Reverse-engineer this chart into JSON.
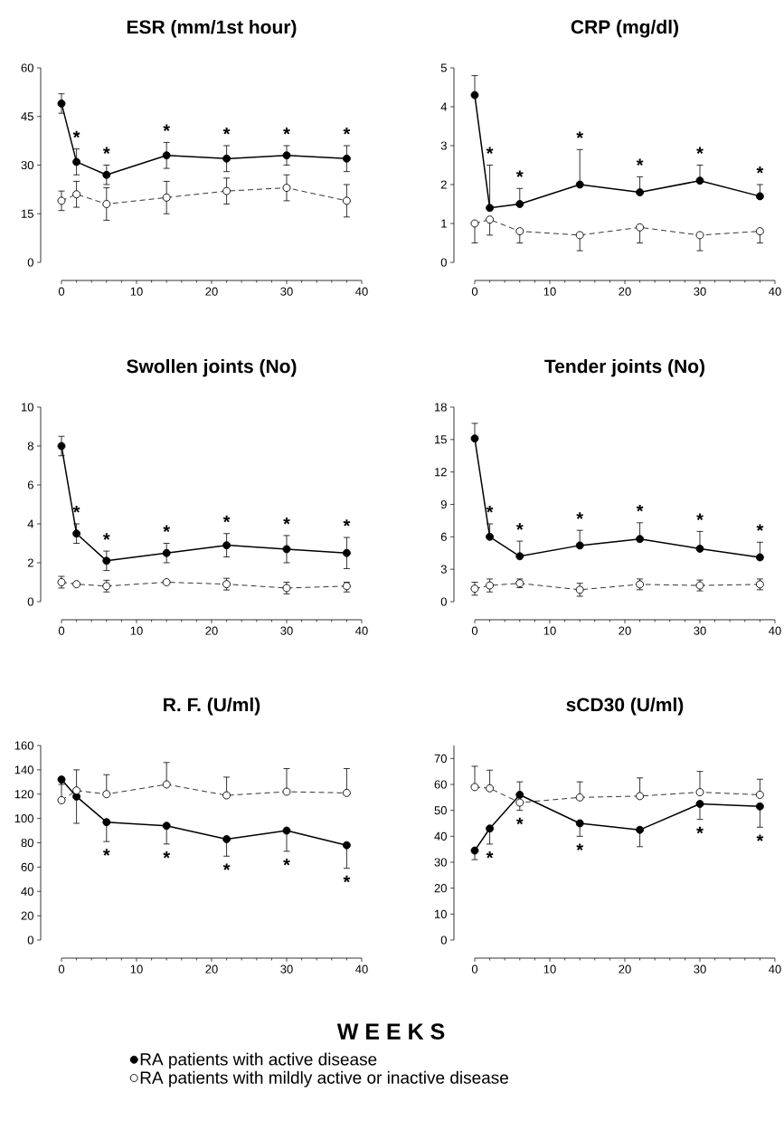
{
  "chart_data": [
    {
      "type": "line",
      "title": "ESR (mm/1st hour)",
      "x": [
        0,
        2,
        6,
        14,
        22,
        30,
        38
      ],
      "xlim": [
        0,
        40
      ],
      "xticks": [
        0,
        10,
        20,
        30,
        40
      ],
      "ylim": [
        0,
        60
      ],
      "yticks": [
        0,
        15,
        30,
        45,
        60
      ],
      "marker": "circle",
      "series": [
        {
          "color": "#000000",
          "line_style": "solid",
          "values": [
            49,
            31,
            27,
            33,
            32,
            33,
            32
          ],
          "errors": [
            [
              46,
              52
            ],
            [
              27,
              35
            ],
            [
              24,
              30
            ],
            [
              29,
              37
            ],
            [
              28,
              36
            ],
            [
              30,
              36
            ],
            [
              28,
              36
            ]
          ]
        },
        {
          "color": "#000000",
          "line_style": "dashed",
          "values": [
            19,
            21,
            18,
            20,
            22,
            23,
            19
          ],
          "errors": [
            [
              16,
              22
            ],
            [
              17,
              25
            ],
            [
              13,
              23
            ],
            [
              15,
              25
            ],
            [
              18,
              26
            ],
            [
              19,
              27
            ],
            [
              14,
              24
            ]
          ]
        }
      ],
      "annotations": [
        {
          "text": "*",
          "x": 2,
          "y": 31
        },
        {
          "text": "*",
          "x": 6,
          "y": 27
        },
        {
          "text": "*",
          "x": 14,
          "y": 33
        },
        {
          "text": "*",
          "x": 22,
          "y": 32
        },
        {
          "text": "*",
          "x": 30,
          "y": 33
        },
        {
          "text": "*",
          "x": 38,
          "y": 32
        }
      ]
    },
    {
      "type": "line",
      "title": "CRP (mg/dl)",
      "x": [
        0,
        2,
        6,
        14,
        22,
        30,
        38
      ],
      "xlim": [
        0,
        40
      ],
      "xticks": [
        0,
        10,
        20,
        30,
        40
      ],
      "ylim": [
        0,
        5
      ],
      "yticks": [
        0,
        1,
        2,
        3,
        4,
        5
      ],
      "marker": "circle",
      "series": [
        {
          "color": "#000000",
          "line_style": "solid",
          "values": [
            4.3,
            1.4,
            1.5,
            2.0,
            1.8,
            2.1,
            1.7
          ],
          "errors": [
            [
              4.3,
              4.8
            ],
            [
              1.4,
              2.5
            ],
            [
              1.5,
              1.9
            ],
            [
              2.0,
              2.9
            ],
            [
              1.8,
              2.2
            ],
            [
              2.1,
              2.5
            ],
            [
              1.7,
              2.0
            ]
          ]
        },
        {
          "color": "#000000",
          "line_style": "dashed",
          "values": [
            1.0,
            1.1,
            0.8,
            0.7,
            0.9,
            0.7,
            0.8
          ],
          "errors": [
            [
              0.5,
              1.0
            ],
            [
              0.7,
              1.1
            ],
            [
              0.5,
              0.8
            ],
            [
              0.3,
              0.7
            ],
            [
              0.5,
              0.9
            ],
            [
              0.3,
              0.7
            ],
            [
              0.5,
              0.8
            ]
          ]
        }
      ],
      "annotations": [
        {
          "text": "*",
          "x": 2,
          "y": 1.4
        },
        {
          "text": "*",
          "x": 6,
          "y": 1.5
        },
        {
          "text": "*",
          "x": 14,
          "y": 2.0
        },
        {
          "text": "*",
          "x": 22,
          "y": 1.8
        },
        {
          "text": "*",
          "x": 30,
          "y": 2.1
        },
        {
          "text": "*",
          "x": 38,
          "y": 1.7
        }
      ]
    },
    {
      "type": "line",
      "title": "Swollen joints (No)",
      "x": [
        0,
        2,
        6,
        14,
        22,
        30,
        38
      ],
      "xlim": [
        0,
        40
      ],
      "xticks": [
        0,
        10,
        20,
        30,
        40
      ],
      "ylim": [
        0,
        10
      ],
      "yticks": [
        0,
        2,
        4,
        6,
        8,
        10
      ],
      "marker": "circle",
      "series": [
        {
          "color": "#000000",
          "line_style": "solid",
          "values": [
            8.0,
            3.5,
            2.1,
            2.5,
            2.9,
            2.7,
            2.5
          ],
          "errors": [
            [
              7.5,
              8.5
            ],
            [
              3.0,
              4.0
            ],
            [
              1.6,
              2.6
            ],
            [
              2.0,
              3.0
            ],
            [
              2.3,
              3.5
            ],
            [
              2.0,
              3.4
            ],
            [
              1.7,
              3.3
            ]
          ]
        },
        {
          "color": "#000000",
          "line_style": "dashed",
          "values": [
            1.0,
            0.9,
            0.8,
            1.0,
            0.9,
            0.7,
            0.8
          ],
          "errors": [
            [
              0.7,
              1.3
            ],
            null,
            [
              0.5,
              1.1
            ],
            null,
            [
              0.6,
              1.2
            ],
            [
              0.4,
              1.0
            ],
            [
              0.5,
              1.0
            ]
          ]
        }
      ],
      "annotations": [
        {
          "text": "*",
          "x": 2,
          "y": 3.5
        },
        {
          "text": "*",
          "x": 6,
          "y": 2.1
        },
        {
          "text": "*",
          "x": 14,
          "y": 2.5
        },
        {
          "text": "*",
          "x": 22,
          "y": 2.9
        },
        {
          "text": "*",
          "x": 30,
          "y": 2.7
        },
        {
          "text": "*",
          "x": 38,
          "y": 2.5
        }
      ]
    },
    {
      "type": "line",
      "title": "Tender joints (No)",
      "x": [
        0,
        2,
        6,
        14,
        22,
        30,
        38
      ],
      "xlim": [
        0,
        40
      ],
      "xticks": [
        0,
        10,
        20,
        30,
        40
      ],
      "ylim": [
        0,
        18
      ],
      "yticks": [
        0,
        3,
        6,
        9,
        12,
        15,
        18
      ],
      "marker": "circle",
      "series": [
        {
          "color": "#000000",
          "line_style": "solid",
          "values": [
            15.1,
            6.0,
            4.2,
            5.2,
            5.8,
            4.9,
            4.1
          ],
          "errors": [
            [
              15.1,
              16.5
            ],
            [
              6.0,
              7.2
            ],
            [
              4.2,
              5.6
            ],
            [
              5.2,
              6.6
            ],
            [
              5.8,
              7.3
            ],
            [
              4.9,
              6.5
            ],
            [
              4.1,
              5.5
            ]
          ]
        },
        {
          "color": "#000000",
          "line_style": "dashed",
          "values": [
            1.2,
            1.5,
            1.7,
            1.1,
            1.6,
            1.5,
            1.6
          ],
          "errors": [
            [
              0.6,
              1.8
            ],
            [
              0.9,
              2.1
            ],
            [
              1.3,
              2.1
            ],
            [
              0.5,
              1.7
            ],
            [
              1.1,
              2.1
            ],
            [
              1.0,
              2.0
            ],
            [
              1.1,
              2.1
            ]
          ]
        }
      ],
      "annotations": [
        {
          "text": "*",
          "x": 2,
          "y": 6.0
        },
        {
          "text": "*",
          "x": 6,
          "y": 4.2
        },
        {
          "text": "*",
          "x": 14,
          "y": 5.2
        },
        {
          "text": "*",
          "x": 22,
          "y": 5.8
        },
        {
          "text": "*",
          "x": 30,
          "y": 4.9
        },
        {
          "text": "*",
          "x": 38,
          "y": 4.1
        }
      ]
    },
    {
      "type": "line",
      "title": "R. F. (U/ml)",
      "xlabel": "W E E K S",
      "legend": "bottom",
      "x": [
        0,
        2,
        6,
        14,
        22,
        30,
        38
      ],
      "xlim": [
        0,
        40
      ],
      "xticks": [
        0,
        10,
        20,
        30,
        40
      ],
      "ylim": [
        0,
        160
      ],
      "yticks": [
        0,
        20,
        40,
        60,
        80,
        100,
        120,
        140,
        160
      ],
      "marker": "circle",
      "series": [
        {
          "name": "RA patients with active disease",
          "color": "#000000",
          "line_style": "solid",
          "values": [
            132,
            118,
            97,
            94,
            83,
            90,
            78
          ],
          "errors": [
            [
              128,
              132
            ],
            [
              96,
              118
            ],
            [
              81,
              97
            ],
            [
              79,
              94
            ],
            [
              69,
              83
            ],
            [
              73,
              90
            ],
            [
              59,
              78
            ]
          ]
        },
        {
          "name": "RA patients with mildly active or inactive disease",
          "color": "#000000",
          "line_style": "dashed",
          "values": [
            115,
            123,
            120,
            128,
            119,
            122,
            121
          ],
          "errors": [
            [
              115,
              132
            ],
            [
              123,
              140
            ],
            [
              120,
              136
            ],
            [
              128,
              146
            ],
            [
              119,
              134
            ],
            [
              122,
              141
            ],
            [
              121,
              141
            ]
          ]
        }
      ],
      "annotations": [
        {
          "text": "*",
          "x": 6,
          "y": 97
        },
        {
          "text": "*",
          "x": 14,
          "y": 94
        },
        {
          "text": "*",
          "x": 22,
          "y": 83
        },
        {
          "text": "*",
          "x": 30,
          "y": 90
        },
        {
          "text": "*",
          "x": 38,
          "y": 78
        }
      ]
    },
    {
      "type": "line",
      "title": "sCD30 (U/ml)",
      "x": [
        0,
        2,
        6,
        14,
        22,
        30,
        38
      ],
      "xlim": [
        0,
        40
      ],
      "xticks": [
        0,
        10,
        20,
        30,
        40
      ],
      "ylim": [
        0,
        75
      ],
      "yticks": [
        0,
        10,
        20,
        30,
        40,
        50,
        60,
        70
      ],
      "marker": "circle",
      "series": [
        {
          "color": "#000000",
          "line_style": "solid",
          "values": [
            34.5,
            43,
            56,
            45,
            42.5,
            52.5,
            51.5
          ],
          "errors": [
            [
              31,
              34.5
            ],
            [
              37,
              43
            ],
            [
              56,
              61
            ],
            [
              40,
              45
            ],
            [
              36,
              42.5
            ],
            [
              46.5,
              52.5
            ],
            [
              43.5,
              51.5
            ]
          ]
        },
        {
          "color": "#000000",
          "line_style": "dashed",
          "values": [
            59,
            58.5,
            53,
            55,
            55.5,
            57,
            56
          ],
          "errors": [
            [
              59,
              67
            ],
            [
              58.5,
              65.5
            ],
            [
              50,
              53
            ],
            [
              55,
              61
            ],
            [
              55.5,
              62.5
            ],
            [
              57,
              65
            ],
            [
              56,
              62
            ]
          ]
        }
      ],
      "annotations": [
        {
          "text": "*",
          "x": 2,
          "y": 43
        },
        {
          "text": "*",
          "x": 6,
          "y": 53
        },
        {
          "text": "*",
          "x": 14,
          "y": 45
        },
        {
          "text": "*",
          "x": 30,
          "y": 52.5
        },
        {
          "text": "*",
          "x": 38,
          "y": 51.5
        }
      ]
    }
  ]
}
